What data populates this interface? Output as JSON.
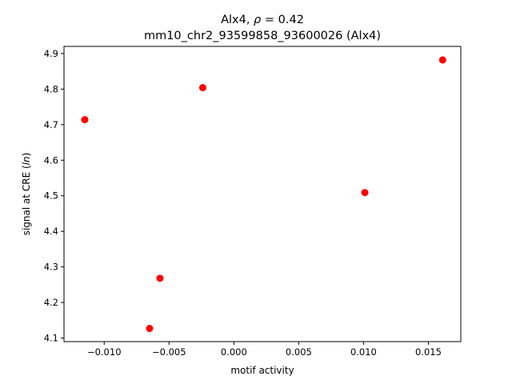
{
  "chart_data": {
    "type": "scatter",
    "title": "Alx4, ρ = 0.42",
    "subtitle": "mm10_chr2_93599858_93600026 (Alx4)",
    "xlabel": "motif activity",
    "ylabel": "signal at CRE (ln)",
    "xlim": [
      -0.0131,
      0.0175
    ],
    "ylim": [
      4.09,
      4.92
    ],
    "xticks": [
      -0.01,
      -0.005,
      0.0,
      0.005,
      0.01,
      0.015
    ],
    "xtick_labels": [
      "−0.010",
      "−0.005",
      "0.000",
      "0.005",
      "0.010",
      "0.015"
    ],
    "yticks": [
      4.1,
      4.2,
      4.3,
      4.4,
      4.5,
      4.6,
      4.7,
      4.8,
      4.9
    ],
    "ytick_labels": [
      "4.1",
      "4.2",
      "4.3",
      "4.4",
      "4.5",
      "4.6",
      "4.7",
      "4.8",
      "4.9"
    ],
    "grid": false,
    "marker_color": "#ff0000",
    "points": [
      {
        "x": -0.0115,
        "y": 4.714
      },
      {
        "x": -0.0065,
        "y": 4.127
      },
      {
        "x": -0.0057,
        "y": 4.268
      },
      {
        "x": -0.0024,
        "y": 4.804
      },
      {
        "x": 0.0101,
        "y": 4.509
      },
      {
        "x": 0.0161,
        "y": 4.882
      }
    ]
  }
}
